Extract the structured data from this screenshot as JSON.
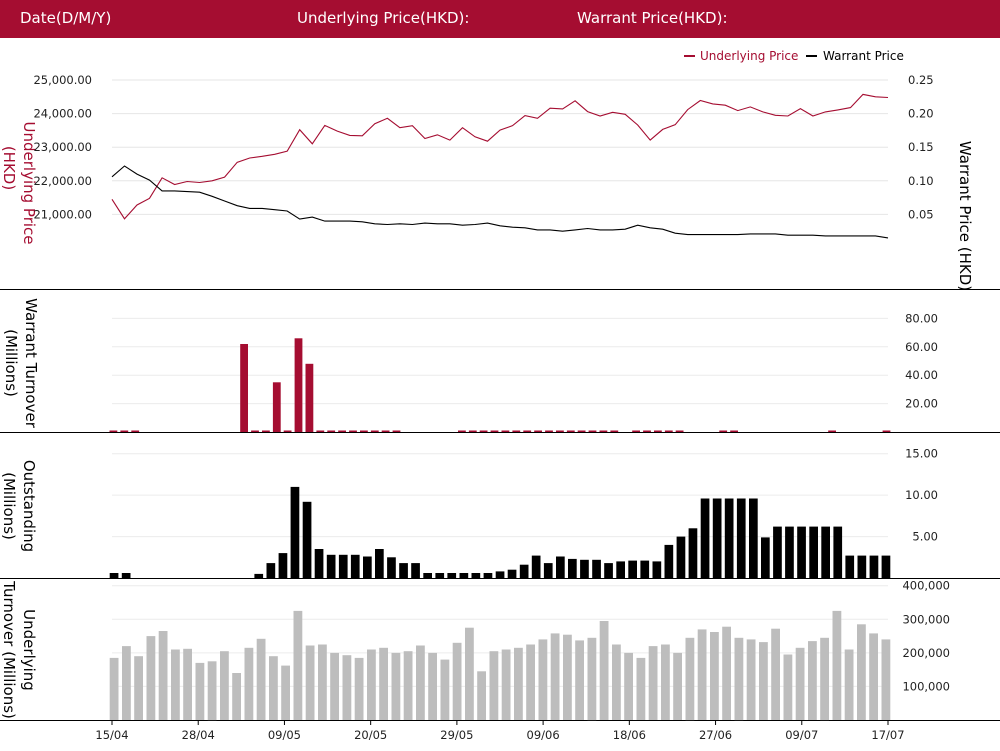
{
  "header": {
    "date_label": "Date(D/M/Y)",
    "underlying_label": "Underlying Price(HKD):",
    "warrant_label": "Warrant Price(HKD):"
  },
  "legend": {
    "underlying": "Underlying Price",
    "warrant": "Warrant Price"
  },
  "colors": {
    "accent": "#a50d31",
    "underlying_line": "#a50d31",
    "warrant_line": "#000000",
    "turnover_bar": "#a50d31",
    "outstanding_bar": "#000000",
    "underlying_turnover_bar": "#bdbdbd"
  },
  "chart_data": [
    {
      "type": "line",
      "title": "",
      "xlabel": "",
      "ylabel": "Underlying Price (HKD)",
      "y2label": "Warrant  Price (HKD)",
      "yticks": [
        "21,000.00",
        "22,000.00",
        "23,000.00",
        "24,000.00",
        "25,000.00"
      ],
      "y2ticks": [
        "0.05",
        "0.10",
        "0.15",
        "0.20",
        "0.25"
      ],
      "ylim": [
        20000,
        25000
      ],
      "y2lim": [
        0,
        0.25
      ],
      "series": [
        {
          "name": "Underlying Price",
          "axis": "left",
          "values": [
            21450,
            20870,
            21280,
            21480,
            22090,
            21890,
            21980,
            21950,
            22000,
            22110,
            22550,
            22680,
            22730,
            22790,
            22880,
            23520,
            23100,
            23650,
            23480,
            23350,
            23340,
            23700,
            23860,
            23580,
            23640,
            23260,
            23370,
            23210,
            23580,
            23310,
            23180,
            23510,
            23640,
            23940,
            23860,
            24160,
            24140,
            24380,
            24060,
            23930,
            24040,
            23980,
            23660,
            23210,
            23530,
            23670,
            24120,
            24390,
            24290,
            24250,
            24090,
            24200,
            24050,
            23950,
            23930,
            24150,
            23930,
            24050,
            24110,
            24180,
            24570,
            24500,
            24480
          ]
        },
        {
          "name": "Warrant Price",
          "axis": "right",
          "values": [
            0.106,
            0.122,
            0.11,
            0.101,
            0.085,
            0.085,
            0.084,
            0.083,
            0.077,
            0.07,
            0.063,
            0.059,
            0.059,
            0.057,
            0.055,
            0.043,
            0.046,
            0.04,
            0.04,
            0.04,
            0.039,
            0.036,
            0.035,
            0.036,
            0.035,
            0.037,
            0.036,
            0.036,
            0.034,
            0.035,
            0.037,
            0.033,
            0.031,
            0.03,
            0.027,
            0.027,
            0.025,
            0.027,
            0.029,
            0.027,
            0.027,
            0.028,
            0.034,
            0.03,
            0.028,
            0.022,
            0.02,
            0.02,
            0.02,
            0.02,
            0.02,
            0.021,
            0.021,
            0.021,
            0.019,
            0.019,
            0.019,
            0.018,
            0.018,
            0.018,
            0.018,
            0.018,
            0.015
          ]
        }
      ]
    },
    {
      "type": "bar",
      "title": "",
      "xlabel": "",
      "ylabel": "Warrant  Turnover (Millions)",
      "yticks": [
        "20.00",
        "40.00",
        "60.00",
        "80.00"
      ],
      "ylim": [
        0,
        100
      ],
      "series": [
        {
          "values": [
            0.4,
            0.4,
            0.4,
            0,
            0,
            0,
            0,
            0,
            0,
            0,
            0,
            0,
            62,
            0.4,
            0.4,
            35,
            0.4,
            66,
            48,
            0.4,
            0.4,
            0.4,
            0.4,
            0.4,
            0.4,
            0.4,
            0.4,
            0,
            0,
            0,
            0,
            0,
            0.4,
            0.4,
            0.4,
            0.4,
            0.4,
            0.4,
            0.4,
            0.4,
            0.4,
            0.4,
            0.4,
            0.4,
            0.4,
            0.4,
            0.4,
            0,
            0.4,
            0.4,
            0.4,
            0.4,
            0.4,
            0,
            0,
            0,
            0.4,
            0.4,
            0,
            0,
            0,
            0,
            0,
            0,
            0,
            0,
            0.4,
            0,
            0,
            0,
            0,
            0.4
          ]
        }
      ]
    },
    {
      "type": "bar",
      "title": "",
      "xlabel": "",
      "ylabel": "Outstanding (Millions)",
      "yticks": [
        "5.00",
        "10.00",
        "15.00"
      ],
      "ylim": [
        0,
        17.5
      ],
      "series": [
        {
          "values": [
            0.6,
            0.6,
            0,
            0,
            0,
            0,
            0,
            0,
            0,
            0,
            0,
            0,
            0.5,
            1.8,
            3.0,
            11.0,
            9.2,
            3.5,
            2.8,
            2.8,
            2.8,
            2.6,
            3.5,
            2.5,
            1.8,
            1.8,
            0.6,
            0.6,
            0.6,
            0.6,
            0.6,
            0.6,
            0.8,
            1.0,
            1.6,
            2.7,
            1.8,
            2.6,
            2.3,
            2.2,
            2.2,
            1.8,
            2.0,
            2.1,
            2.1,
            2.0,
            4.0,
            5.0,
            6.0,
            9.6,
            9.6,
            9.6,
            9.6,
            9.6,
            4.9,
            6.2,
            6.2,
            6.2,
            6.2,
            6.2,
            6.2,
            2.7,
            2.7,
            2.7,
            2.7
          ]
        }
      ]
    },
    {
      "type": "bar",
      "title": "",
      "xlabel": "",
      "ylabel": "Underlying Turnover (Millions)",
      "yticks": [
        "100,000",
        "200,000",
        "300,000",
        "400,000"
      ],
      "ylim": [
        0,
        420000
      ],
      "xticks": [
        "15/04",
        "28/04",
        "09/05",
        "20/05",
        "29/05",
        "09/06",
        "18/06",
        "27/06",
        "09/07",
        "17/07"
      ],
      "series": [
        {
          "values": [
            185000,
            220000,
            190000,
            250000,
            265000,
            210000,
            212000,
            170000,
            175000,
            205000,
            140000,
            215000,
            242000,
            190000,
            162000,
            325000,
            222000,
            225000,
            200000,
            193000,
            185000,
            210000,
            215000,
            200000,
            205000,
            222000,
            200000,
            180000,
            230000,
            275000,
            145000,
            205000,
            210000,
            215000,
            225000,
            240000,
            258000,
            254000,
            237000,
            245000,
            295000,
            225000,
            200000,
            185000,
            220000,
            225000,
            200000,
            245000,
            270000,
            262000,
            278000,
            245000,
            240000,
            232000,
            272000,
            195000,
            215000,
            235000,
            245000,
            325000,
            210000,
            285000,
            258000,
            240000
          ]
        }
      ]
    }
  ]
}
